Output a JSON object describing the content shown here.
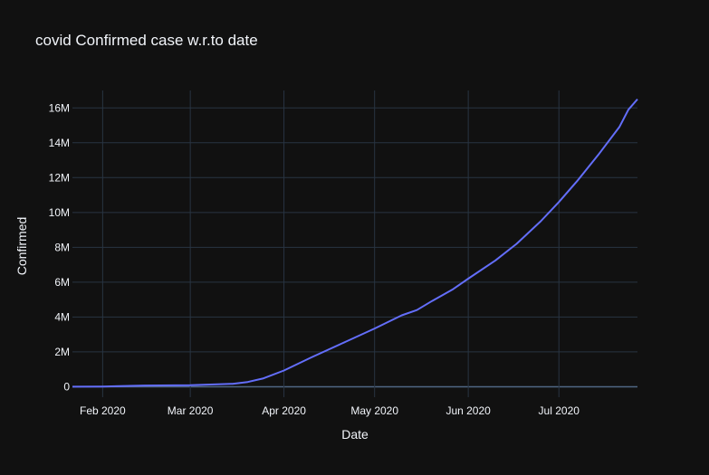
{
  "chart_data": {
    "type": "line",
    "title": "covid Confirmed case w.r.to date",
    "xlabel": "Date",
    "ylabel": "Confirmed",
    "x_tick_labels": [
      "Feb 2020",
      "Mar 2020",
      "Apr 2020",
      "May 2020",
      "Jun 2020",
      "Jul 2020"
    ],
    "x_tick_dates": [
      "2020-02-01",
      "2020-03-01",
      "2020-04-01",
      "2020-05-01",
      "2020-06-01",
      "2020-07-01"
    ],
    "y_tick_labels": [
      "0",
      "2M",
      "4M",
      "6M",
      "8M",
      "10M",
      "12M",
      "14M",
      "16M"
    ],
    "y_tick_values": [
      0,
      2000000,
      4000000,
      6000000,
      8000000,
      10000000,
      12000000,
      14000000,
      16000000
    ],
    "xlim": [
      "2020-01-22",
      "2020-07-27"
    ],
    "ylim": [
      -600000,
      17000000
    ],
    "grid": true,
    "legend": "none",
    "line_color": "#636efa",
    "series": [
      {
        "x": [
          "2020-01-22",
          "2020-02-01",
          "2020-02-15",
          "2020-03-01",
          "2020-03-15",
          "2020-03-20",
          "2020-03-25",
          "2020-04-01",
          "2020-04-10",
          "2020-04-20",
          "2020-05-01",
          "2020-05-10",
          "2020-05-15",
          "2020-05-20",
          "2020-05-27",
          "2020-06-01",
          "2020-06-10",
          "2020-06-17",
          "2020-06-25",
          "2020-07-01",
          "2020-07-07",
          "2020-07-14",
          "2020-07-21",
          "2020-07-24",
          "2020-07-27"
        ],
        "y": [
          560,
          12000,
          69000,
          88000,
          167000,
          272000,
          470000,
          930000,
          1680000,
          2470000,
          3340000,
          4100000,
          4400000,
          4920000,
          5600000,
          6200000,
          7250000,
          8200000,
          9500000,
          10600000,
          11800000,
          13300000,
          14900000,
          15900000,
          16500000
        ]
      }
    ]
  }
}
